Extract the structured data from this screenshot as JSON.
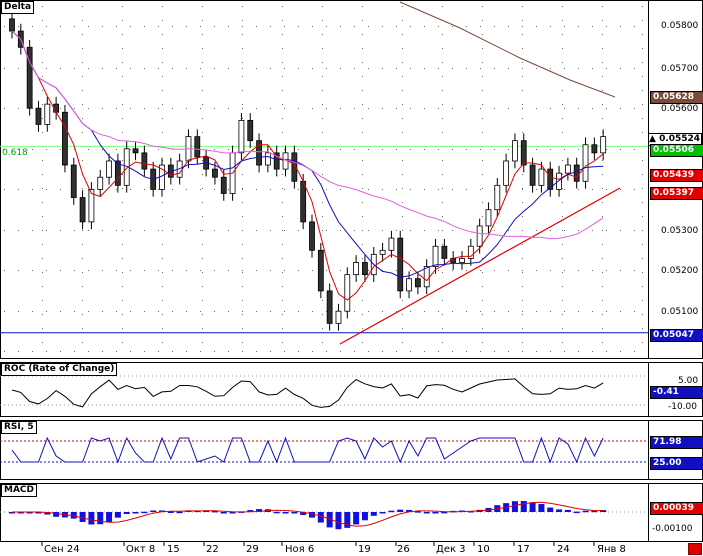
{
  "main": {
    "title": "Delta",
    "fib_label": "0.618",
    "price_ticks": [
      "0.05800",
      "0.05700",
      "0.05600",
      "0.05300",
      "0.05200",
      "0.05100"
    ],
    "price_labels": [
      {
        "text": "0.05628",
        "bg": "#7a4a3a",
        "fg": "#ffffff"
      },
      {
        "text": "0.05524",
        "bg": "#ffffff",
        "fg": "#000000",
        "arrow": "▲"
      },
      {
        "text": "0.05506",
        "bg": "#00c000",
        "fg": "#ffffff"
      },
      {
        "text": "0.05439",
        "bg": "#e00000",
        "fg": "#ffffff"
      },
      {
        "text": "0.05397",
        "bg": "#e00000",
        "fg": "#ffffff"
      },
      {
        "text": "0.05047",
        "bg": "#1010c0",
        "fg": "#ffffff"
      }
    ]
  },
  "roc": {
    "title": "ROC (Rate of Change)",
    "ticks": [
      "5.00",
      "-10.00"
    ],
    "value": "-0.41"
  },
  "rsi": {
    "title": "RSI, 5",
    "value": "71.98",
    "level": "25.00"
  },
  "macd": {
    "title": "MACD",
    "value": "0.00039",
    "tick": "-0.00100"
  },
  "xaxis": {
    "labels": [
      "Сен 24",
      "Окт 8",
      "15",
      "22",
      "29",
      "Ноя 6",
      "19",
      "26",
      "Дек 3",
      "10",
      "17",
      "24",
      "Янв 8"
    ]
  },
  "colors": {
    "bull": "#ffffff",
    "bear": "#303030",
    "ma_fast": "#e00000",
    "ma_mid": "#1010c0",
    "ma_slow": "#e060e0",
    "ma_long": "#7a4a3a",
    "macd": "#1010e0"
  }
}
